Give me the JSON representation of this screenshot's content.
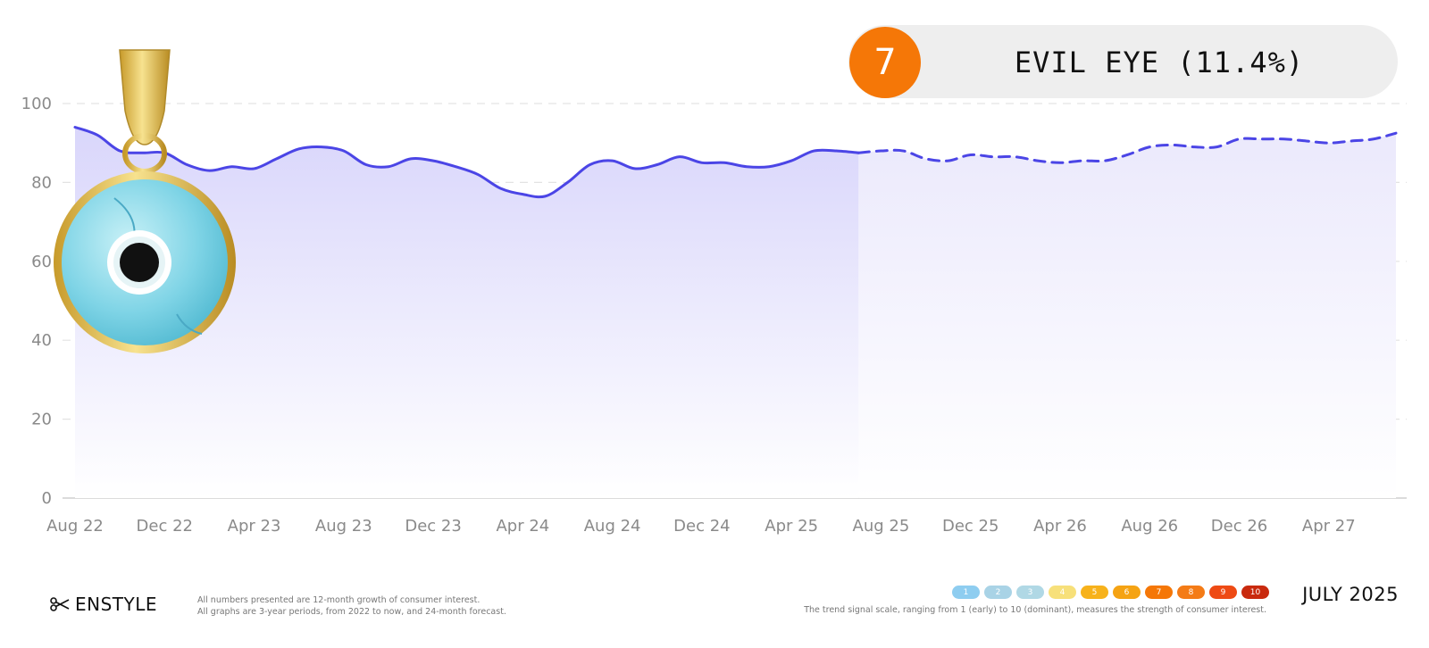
{
  "badge": {
    "rank": "7",
    "label": "EVIL EYE (11.4%)",
    "color": "#f57707"
  },
  "chart_data": {
    "type": "area",
    "xlabel": "",
    "ylabel": "",
    "ylim": [
      0,
      100
    ],
    "yticks": [
      "0",
      "20",
      "40",
      "60",
      "80",
      "100"
    ],
    "xtick_labels": [
      "Aug 22",
      "Dec 22",
      "Apr 23",
      "Aug 23",
      "Dec 23",
      "Apr 24",
      "Aug 24",
      "Dec 24",
      "Apr 25",
      "Aug 25",
      "Dec 25",
      "Apr 26",
      "Aug 26",
      "Dec 26",
      "Apr 27"
    ],
    "grid": true,
    "line_color": "#4b45e6",
    "series": [
      {
        "style": "solid",
        "x": [
          "2022-08",
          "2022-09",
          "2022-10",
          "2022-11",
          "2022-12",
          "2023-01",
          "2023-02",
          "2023-03",
          "2023-04",
          "2023-05",
          "2023-06",
          "2023-07",
          "2023-08",
          "2023-09",
          "2023-10",
          "2023-11",
          "2023-12",
          "2024-01",
          "2024-02",
          "2024-03",
          "2024-04",
          "2024-05",
          "2024-06",
          "2024-07",
          "2024-08",
          "2024-09",
          "2024-10",
          "2024-11",
          "2024-12",
          "2025-01",
          "2025-02",
          "2025-03",
          "2025-04",
          "2025-05",
          "2025-06",
          "2025-07"
        ],
        "values": [
          94,
          92,
          88,
          87.5,
          87.5,
          84.5,
          83,
          84,
          83.5,
          86,
          88.5,
          89,
          88,
          84.5,
          84,
          86,
          85.5,
          84,
          82,
          78.5,
          77,
          76.5,
          80,
          84.5,
          85.5,
          83.5,
          84.5,
          86.5,
          85,
          85,
          84,
          84,
          85.5,
          88,
          88,
          87.5
        ]
      },
      {
        "style": "dashed",
        "x": [
          "2025-07",
          "2025-08",
          "2025-09",
          "2025-10",
          "2025-11",
          "2025-12",
          "2026-01",
          "2026-02",
          "2026-03",
          "2026-04",
          "2026-05",
          "2026-06",
          "2026-07",
          "2026-08",
          "2026-09",
          "2026-10",
          "2026-11",
          "2026-12",
          "2027-01",
          "2027-02",
          "2027-03",
          "2027-04",
          "2027-05",
          "2027-06",
          "2027-07"
        ],
        "values": [
          87.5,
          88,
          88,
          86,
          85.5,
          87,
          86.5,
          86.5,
          85.5,
          85,
          85.5,
          85.5,
          87,
          89,
          89.5,
          89,
          89,
          91,
          91,
          91,
          90.5,
          90,
          90.5,
          91,
          92.5
        ]
      }
    ]
  },
  "footer": {
    "brand": "ENSTYLE",
    "note_line1": "All numbers presented are 12-month growth of consumer interest.",
    "note_line2": "All graphs are 3-year periods, from 2022 to now, and 24-month forecast.",
    "scale": [
      {
        "label": "1",
        "color": "#8ecdf0"
      },
      {
        "label": "2",
        "color": "#a9d3e6"
      },
      {
        "label": "3",
        "color": "#b0d8e5"
      },
      {
        "label": "4",
        "color": "#f7e07a"
      },
      {
        "label": "5",
        "color": "#f7b21b"
      },
      {
        "label": "6",
        "color": "#f5a313"
      },
      {
        "label": "7",
        "color": "#f57707"
      },
      {
        "label": "8",
        "color": "#f47b16"
      },
      {
        "label": "9",
        "color": "#ee4a14"
      },
      {
        "label": "10",
        "color": "#c92a0e"
      }
    ],
    "scale_note": "The trend signal scale, ranging from 1 (early) to 10 (dominant), measures the strength of consumer interest.",
    "report_date": "JULY 2025"
  }
}
